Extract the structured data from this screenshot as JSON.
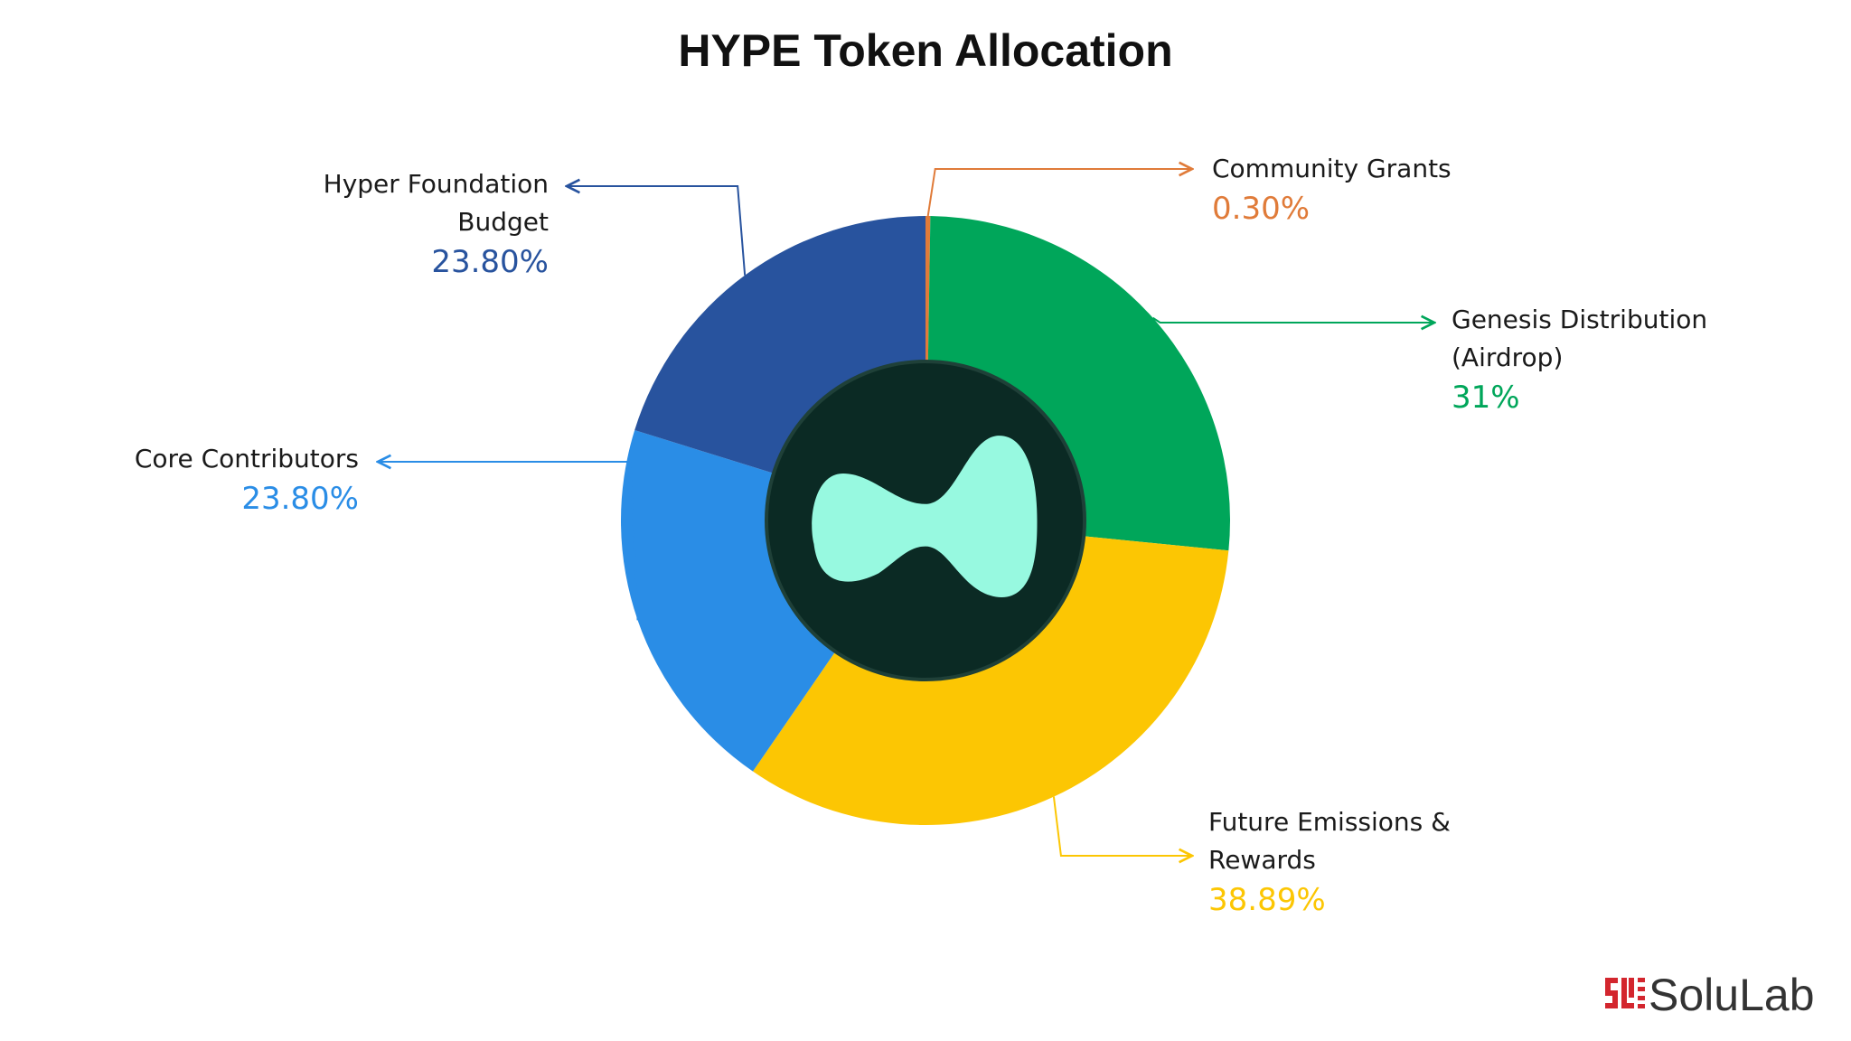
{
  "chart_data": {
    "type": "pie",
    "title": "HYPE Token Allocation",
    "categories": [
      "Community Grants",
      "Genesis Distribution (Airdrop)",
      "Future Emissions & Rewards",
      "Core Contributors",
      "Hyper Foundation Budget"
    ],
    "values": [
      0.3,
      31,
      38.89,
      23.8,
      23.8
    ],
    "value_labels": [
      "0.30%",
      "31%",
      "38.89%",
      "23.80%",
      "23.80%"
    ],
    "colors": [
      "#e07b39",
      "#00a65a",
      "#fcc603",
      "#2a8de6",
      "#28539e"
    ]
  },
  "brand": "SoluLab"
}
